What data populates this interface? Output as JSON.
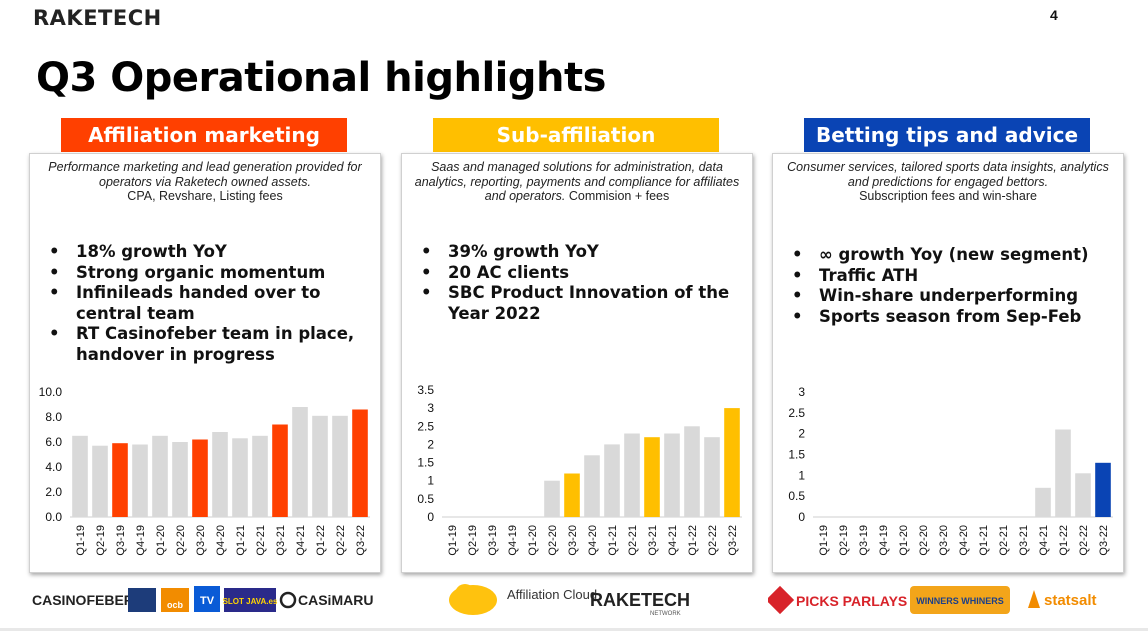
{
  "header": {
    "brand": "RAKETECH",
    "page_number": "4",
    "title": "Q3 Operational highlights"
  },
  "panels": [
    {
      "title": "Affiliation marketing",
      "color": "#ff4000",
      "desc_italic": "Performance marketing and lead generation provided for operators via Raketech owned assets.",
      "desc_plain": "CPA, Revshare, Listing fees",
      "bullets": [
        "18% growth YoY",
        "Strong organic momentum",
        "Infinileads handed over to central team",
        "RT Casinofeber team in place, handover in progress"
      ]
    },
    {
      "title": "Sub-affiliation",
      "color": "#ffbf00",
      "desc_italic": "Saas and managed solutions for administration, data analytics, reporting, payments and compliance for affiliates and operators.",
      "desc_plain": "Commision + fees",
      "bullets": [
        "39% growth YoY",
        "20 AC clients",
        "SBC Product Innovation of the Year 2022"
      ]
    },
    {
      "title": "Betting tips and advice",
      "color": "#0a44b4",
      "desc_italic": "Consumer services, tailored sports data insights, analytics and predictions for engaged bettors.",
      "desc_plain": "Subscription fees and win-share",
      "bullets": [
        "∞ growth Yoy (new segment)",
        "Traffic ATH",
        "Win-share underperforming",
        "Sports season from Sep-Feb"
      ]
    }
  ],
  "chart_data": [
    {
      "type": "bar",
      "categories": [
        "Q1-19",
        "Q2-19",
        "Q3-19",
        "Q4-19",
        "Q1-20",
        "Q2-20",
        "Q3-20",
        "Q4-20",
        "Q1-21",
        "Q2-21",
        "Q3-21",
        "Q4-21",
        "Q1-22",
        "Q2-22",
        "Q3-22"
      ],
      "values": [
        6.5,
        5.7,
        5.9,
        5.8,
        6.5,
        6.0,
        6.2,
        6.8,
        6.3,
        6.5,
        7.4,
        8.8,
        8.1,
        8.1,
        8.6
      ],
      "highlight": [
        false,
        false,
        true,
        false,
        false,
        false,
        true,
        false,
        false,
        false,
        true,
        false,
        false,
        false,
        true
      ],
      "yticks": [
        "0.0",
        "2.0",
        "4.0",
        "6.0",
        "8.0",
        "10.0"
      ],
      "ylim": [
        0,
        10
      ],
      "base_color": "#d9d9d9",
      "highlight_color": "#ff4000"
    },
    {
      "type": "bar",
      "categories": [
        "Q1-19",
        "Q2-19",
        "Q3-19",
        "Q4-19",
        "Q1-20",
        "Q2-20",
        "Q3-20",
        "Q4-20",
        "Q1-21",
        "Q2-21",
        "Q3-21",
        "Q4-21",
        "Q1-22",
        "Q2-22",
        "Q3-22"
      ],
      "values": [
        0,
        0,
        0,
        0,
        0,
        1.0,
        1.2,
        1.7,
        2.0,
        2.3,
        2.2,
        2.3,
        2.5,
        2.2,
        3.0
      ],
      "highlight": [
        false,
        false,
        false,
        false,
        false,
        false,
        true,
        false,
        false,
        false,
        true,
        false,
        false,
        false,
        true
      ],
      "yticks": [
        "0",
        "0.5",
        "1",
        "1.5",
        "2",
        "2.5",
        "3",
        "3.5"
      ],
      "ylim": [
        0,
        3.5
      ],
      "base_color": "#d9d9d9",
      "highlight_color": "#ffbf00"
    },
    {
      "type": "bar",
      "categories": [
        "Q1-19",
        "Q2-19",
        "Q3-19",
        "Q4-19",
        "Q1-20",
        "Q2-20",
        "Q3-20",
        "Q4-20",
        "Q1-21",
        "Q2-21",
        "Q3-21",
        "Q4-21",
        "Q1-22",
        "Q2-22",
        "Q3-22"
      ],
      "values": [
        0,
        0,
        0,
        0,
        0,
        0,
        0,
        0,
        0,
        0,
        0,
        0.7,
        2.1,
        1.05,
        1.3
      ],
      "highlight": [
        false,
        false,
        false,
        false,
        false,
        false,
        false,
        false,
        false,
        false,
        false,
        false,
        false,
        false,
        true
      ],
      "yticks": [
        "0",
        "0.5",
        "1",
        "1.5",
        "2",
        "2.5",
        "3"
      ],
      "ylim": [
        0,
        3
      ],
      "base_color": "#d9d9d9",
      "highlight_color": "#0a44b4"
    }
  ],
  "footer_logos": {
    "panel1": [
      "CASINOFEBER",
      "ocb",
      "TV",
      "SLOT JAVA.es",
      "CASiMARU"
    ],
    "panel2": [
      "Affiliation Cloud",
      "RAKETECH",
      "NETWORK"
    ],
    "panel3": [
      "PICKS PARLAYS",
      "WINNERS WHINERS",
      "statsalt"
    ]
  }
}
